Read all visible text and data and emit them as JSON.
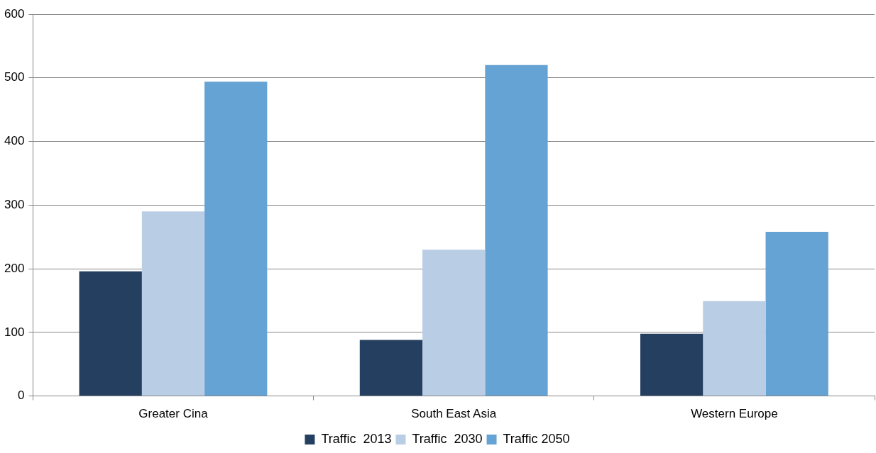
{
  "chart_data": {
    "type": "bar",
    "categories": [
      "Greater Cina",
      "South East Asia",
      "Western Europe"
    ],
    "series": [
      {
        "name": "Traffic  2013",
        "color": "#253f60",
        "values": [
          196,
          88,
          98
        ]
      },
      {
        "name": "Traffic  2030",
        "color": "#b9cde5",
        "values": [
          290,
          230,
          149
        ]
      },
      {
        "name": "Traffic 2050",
        "color": "#65a3d5",
        "values": [
          494,
          520,
          258
        ]
      }
    ],
    "ylim": [
      0,
      600
    ],
    "yticks": [
      0,
      100,
      200,
      300,
      400,
      500,
      600
    ],
    "grid": "y",
    "legend": "bottom"
  }
}
